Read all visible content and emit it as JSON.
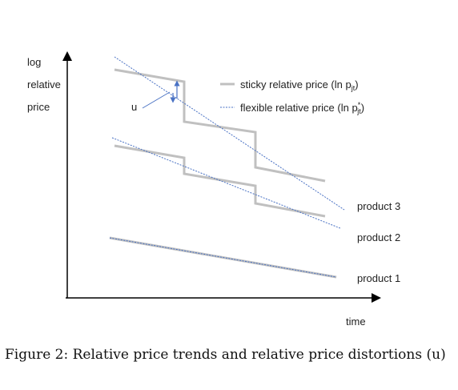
{
  "axes": {
    "y_label_lines": [
      "log",
      "relative",
      "price"
    ],
    "x_label": "time"
  },
  "legend": {
    "sticky_label": "sticky relative price (ln p",
    "sticky_sub": "jt",
    "sticky_close": ")",
    "flexible_label": "flexible relative price (ln p",
    "flexible_sup": "*",
    "flexible_sub": "jt",
    "flexible_close": ")"
  },
  "annotation": {
    "distortion_label": "u"
  },
  "products": [
    {
      "name": "product 3"
    },
    {
      "name": "product 2"
    },
    {
      "name": "product 1"
    }
  ],
  "colors": {
    "axis": "#000000",
    "sticky": "#c0c0c0",
    "flexible": "#4a72c4",
    "arrow": "#4a72c4"
  },
  "caption": "Figure 2: Relative price trends and relative price distortions (u)"
}
